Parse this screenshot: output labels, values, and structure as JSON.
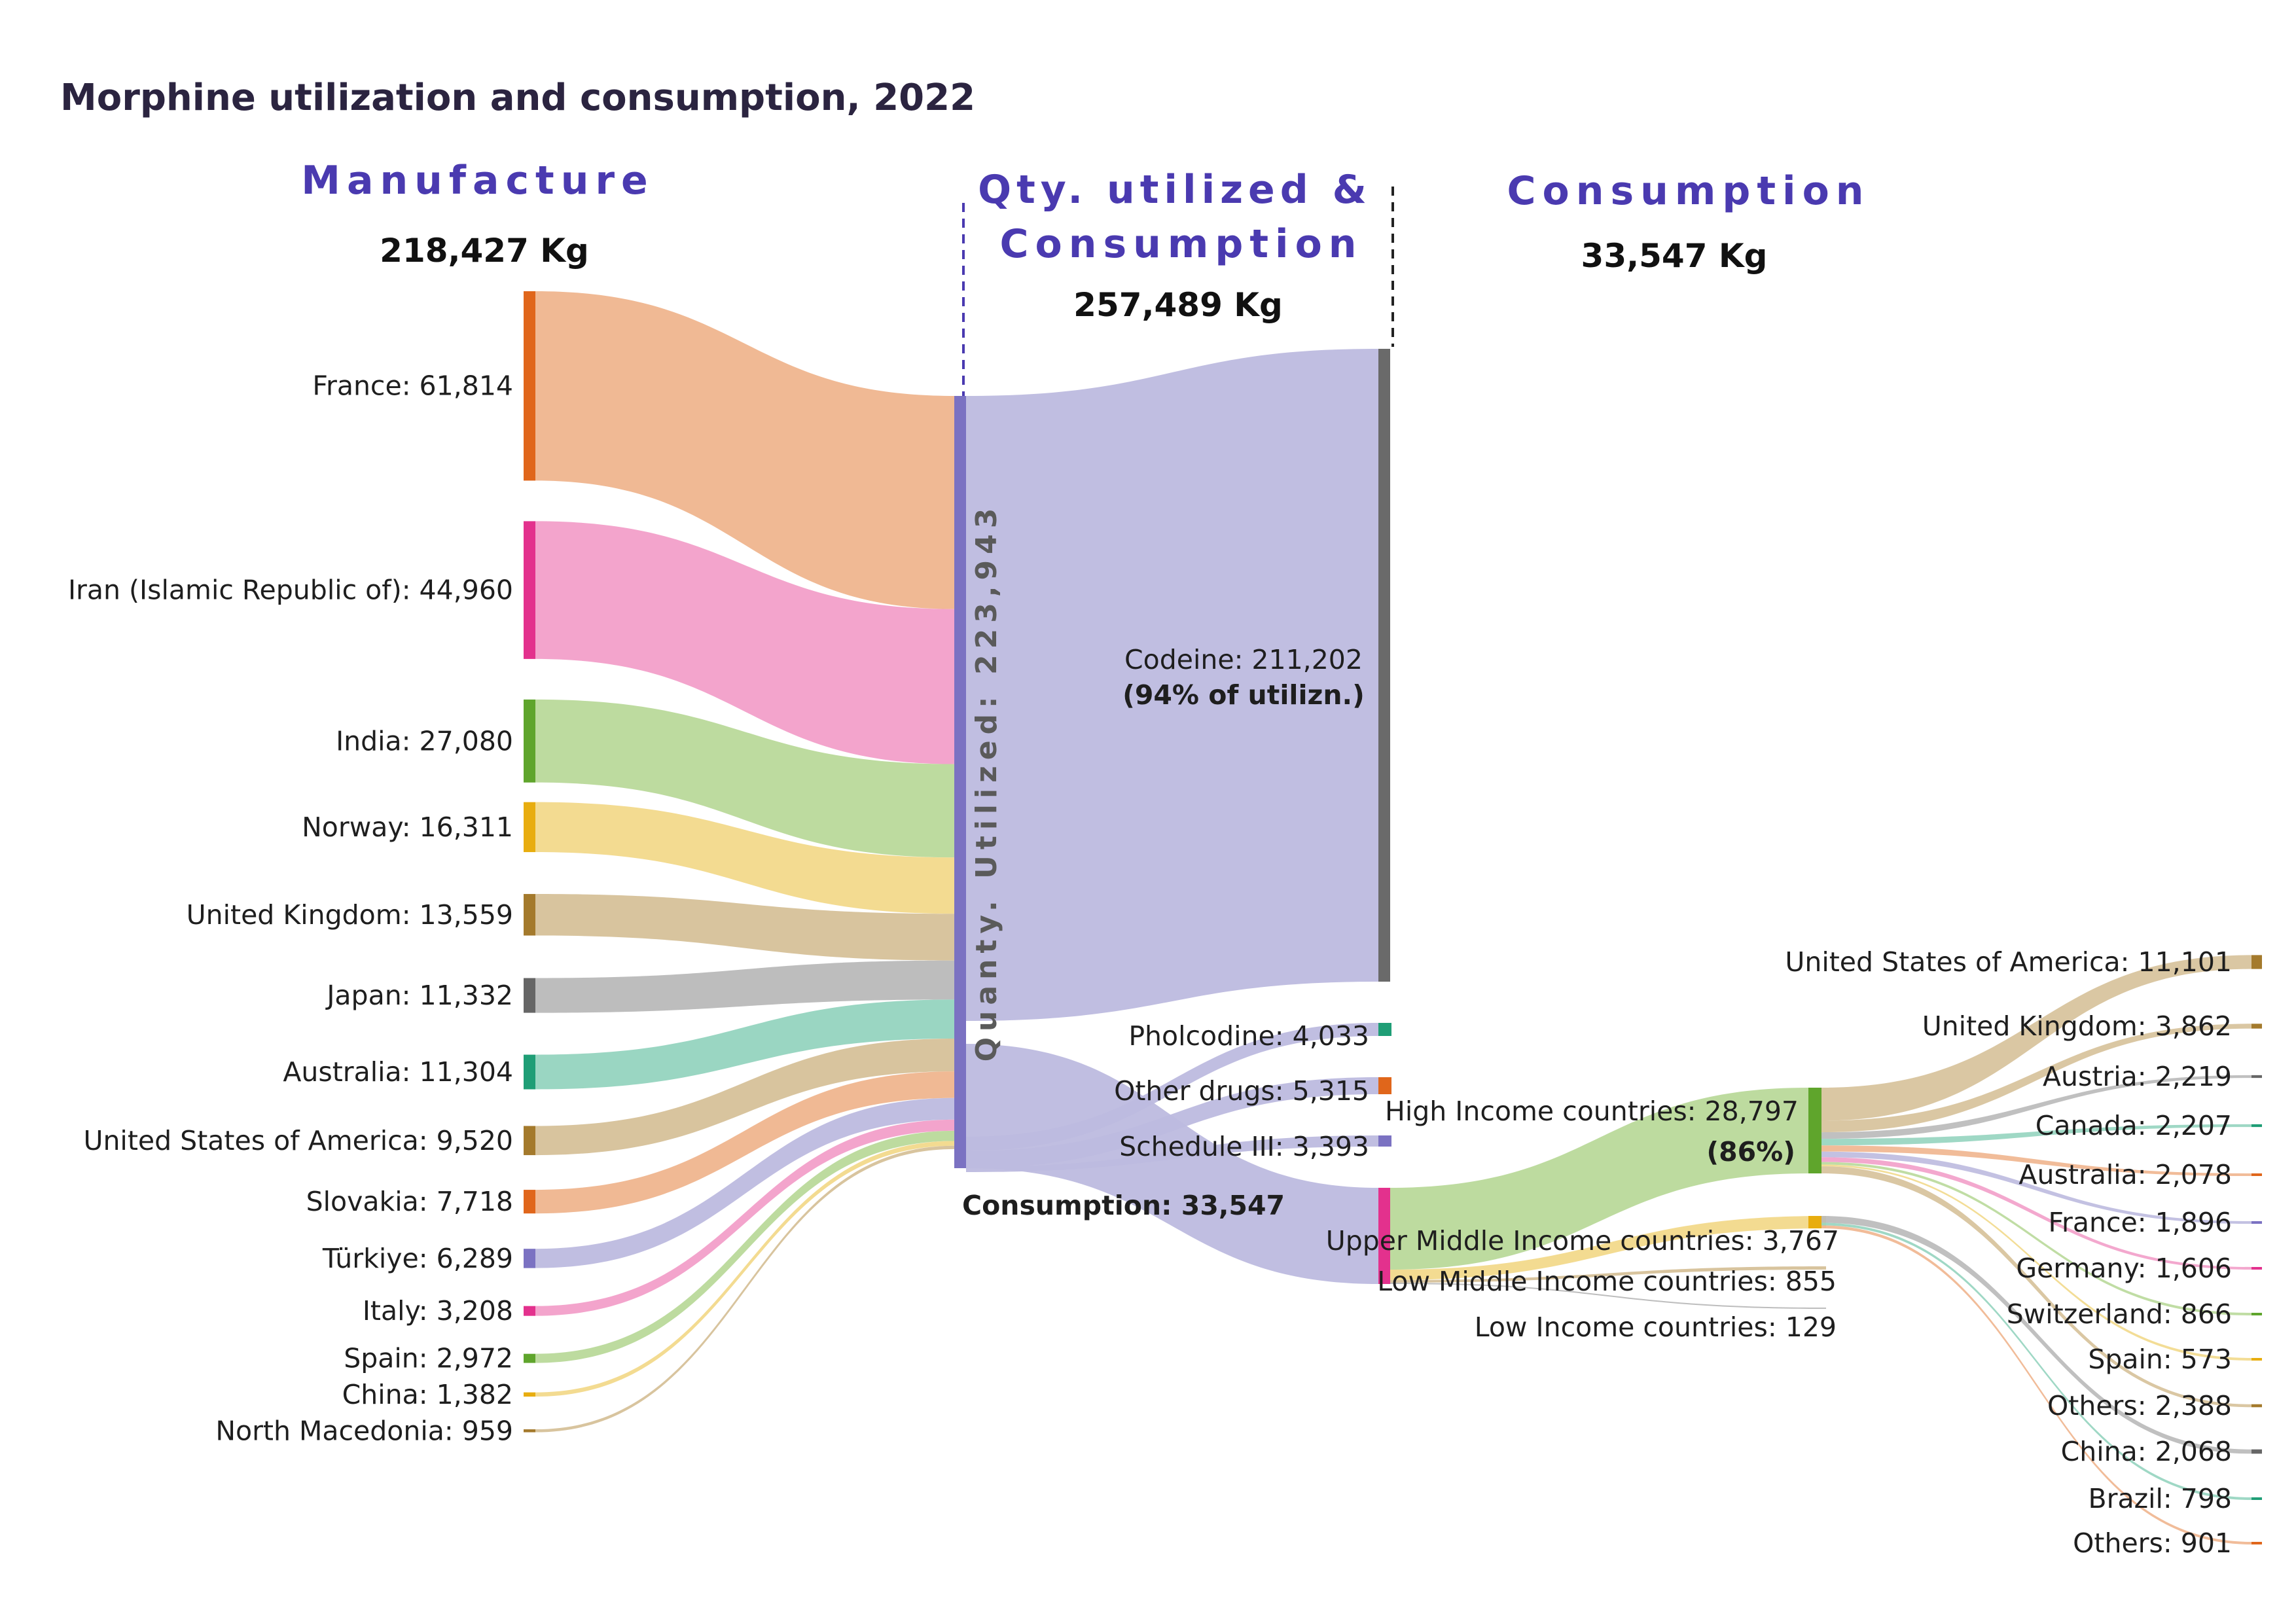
{
  "title": "Morphine utilization and consumption, 2022",
  "headers": {
    "manufacture": "Manufacture",
    "manufacture_total": "218,427 Kg",
    "utilized_line1": "Qty. utilized &",
    "utilized_line2": "Consumption",
    "utilized_total": "257,489 Kg",
    "consumption": "Consumption",
    "consumption_total": "33,547 Kg"
  },
  "colors": {
    "heading": "#4a3ab0",
    "hub": "#7b72c2",
    "hub_link": "#bdbadf",
    "codeine_bar": "#6a6a6a",
    "high_income": "#5fa52c",
    "upper_middle": "#e3318d"
  },
  "chart_data": {
    "type": "sankey",
    "unit": "Kg",
    "hub": {
      "name": "Quanty. Utilized",
      "value": 223943,
      "label": "Quanty. Utilized: 223,943"
    },
    "manufacture": [
      {
        "name": "France",
        "value": 61814,
        "label": "France: 61,814",
        "color": "#e0661b",
        "link_color": "#efb58e"
      },
      {
        "name": "Iran (Islamic Republic of)",
        "value": 44960,
        "label": "Iran (Islamic Republic of): 44,960",
        "color": "#e3318d",
        "link_color": "#f29fc9"
      },
      {
        "name": "India",
        "value": 27080,
        "label": "India: 27,080",
        "color": "#5fa52c",
        "link_color": "#b9d99a"
      },
      {
        "name": "Norway",
        "value": 16311,
        "label": "Norway: 16,311",
        "color": "#e8ad0f",
        "link_color": "#f2d98b"
      },
      {
        "name": "United Kingdom",
        "value": 13559,
        "label": "United Kingdom: 13,559",
        "color": "#a47a2c",
        "link_color": "#d6c199"
      },
      {
        "name": "Japan",
        "value": 11332,
        "label": "Japan: 11,332",
        "color": "#666666",
        "link_color": "#b9b9b9"
      },
      {
        "name": "Australia",
        "value": 11304,
        "label": "Australia: 11,304",
        "color": "#1f9e76",
        "link_color": "#95d4bf"
      },
      {
        "name": "United States of America",
        "value": 9520,
        "label": "United States of America: 9,520",
        "color": "#a47a2c",
        "link_color": "#d6c199"
      },
      {
        "name": "Slovakia",
        "value": 7718,
        "label": "Slovakia: 7,718",
        "color": "#e0661b",
        "link_color": "#efb58e"
      },
      {
        "name": "Türkiye",
        "value": 6289,
        "label": "Türkiye: 6,289",
        "color": "#7b72c2",
        "link_color": "#bdbadf"
      },
      {
        "name": "Italy",
        "value": 3208,
        "label": "Italy: 3,208",
        "color": "#e3318d",
        "link_color": "#f29fc9"
      },
      {
        "name": "Spain",
        "value": 2972,
        "label": "Spain: 2,972",
        "color": "#5fa52c",
        "link_color": "#b9d99a"
      },
      {
        "name": "China",
        "value": 1382,
        "label": "China: 1,382",
        "color": "#e8ad0f",
        "link_color": "#f2d98b"
      },
      {
        "name": "North Macedonia",
        "value": 959,
        "label": "North Macedonia: 959",
        "color": "#a47a2c",
        "link_color": "#d6c199"
      }
    ],
    "utilization": [
      {
        "name": "Codeine",
        "value": 211202,
        "label": "Codeine: 211,202",
        "note": "(94% of utilizn.)",
        "color": "#6a6a6a"
      },
      {
        "name": "Pholcodine",
        "value": 4033,
        "label": "Pholcodine: 4,033",
        "color": "#1f9e76"
      },
      {
        "name": "Other drugs",
        "value": 5315,
        "label": "Other drugs: 5,315",
        "color": "#e0661b"
      },
      {
        "name": "Schedule III",
        "value": 3393,
        "label": "Schedule III: 3,393",
        "color": "#7b72c2"
      },
      {
        "name": "Consumption",
        "value": 33547,
        "label": "Consumption: 33,547",
        "color": "#e3318d"
      }
    ],
    "income_groups": [
      {
        "name": "High Income countries",
        "value": 28797,
        "label": "High Income countries: 28,797",
        "note": "(86%)",
        "color": "#5fa52c",
        "link_color": "#b9d99a"
      },
      {
        "name": "Upper Middle Income countries",
        "value": 3767,
        "label": "Upper Middle Income countries: 3,767",
        "color": "#e8ad0f",
        "link_color": "#f2d98b"
      },
      {
        "name": "Low Middle Income countries",
        "value": 855,
        "label": "Low Middle Income countries: 855",
        "color": "#a47a2c",
        "link_color": "#d6c199"
      },
      {
        "name": "Low Income countries",
        "value": 129,
        "label": "Low Income countries: 129",
        "color": "#666666",
        "link_color": "#b9b9b9"
      }
    ],
    "high_income_countries": [
      {
        "name": "United States of America",
        "value": 11101,
        "label": "United States of America: 11,101",
        "color": "#a47a2c",
        "link_color": "#d6c199"
      },
      {
        "name": "United Kingdom",
        "value": 3862,
        "label": "United Kingdom: 3,862",
        "color": "#a47a2c",
        "link_color": "#d6c199"
      },
      {
        "name": "Austria",
        "value": 2219,
        "label": "Austria: 2,219",
        "color": "#666666",
        "link_color": "#b9b9b9"
      },
      {
        "name": "Canada",
        "value": 2207,
        "label": "Canada: 2,207",
        "color": "#1f9e76",
        "link_color": "#95d4bf"
      },
      {
        "name": "Australia",
        "value": 2078,
        "label": "Australia: 2,078",
        "color": "#e0661b",
        "link_color": "#efb58e"
      },
      {
        "name": "France",
        "value": 1896,
        "label": "France: 1,896",
        "color": "#7b72c2",
        "link_color": "#bdbadf"
      },
      {
        "name": "Germany",
        "value": 1606,
        "label": "Germany: 1,606",
        "color": "#e3318d",
        "link_color": "#f29fc9"
      },
      {
        "name": "Switzerland",
        "value": 866,
        "label": "Switzerland: 866",
        "color": "#5fa52c",
        "link_color": "#b9d99a"
      },
      {
        "name": "Spain",
        "value": 573,
        "label": "Spain: 573",
        "color": "#e8ad0f",
        "link_color": "#f2d98b"
      },
      {
        "name": "Others",
        "value": 2388,
        "label": "Others: 2,388",
        "color": "#a47a2c",
        "link_color": "#d6c199"
      }
    ],
    "upper_middle_countries": [
      {
        "name": "China",
        "value": 2068,
        "label": "China: 2,068",
        "color": "#666666",
        "link_color": "#b9b9b9"
      },
      {
        "name": "Brazil",
        "value": 798,
        "label": "Brazil: 798",
        "color": "#1f9e76",
        "link_color": "#95d4bf"
      },
      {
        "name": "Others",
        "value": 901,
        "label": "Others: 901",
        "color": "#e0661b",
        "link_color": "#efb58e"
      }
    ]
  }
}
